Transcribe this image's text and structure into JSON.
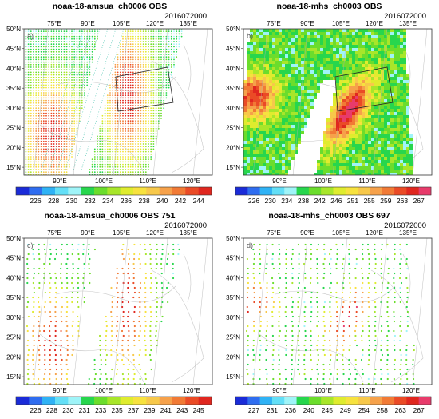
{
  "panels": [
    {
      "id": "a",
      "title": "noaa-18-amsua_ch0006 OBS",
      "date": "2016072000",
      "label": "a)",
      "scheme": "amsua",
      "style": "swaths",
      "box": true,
      "top_lon": [
        "75°E",
        "90°E",
        "105°E",
        "120°E",
        "135°E"
      ],
      "bottom_lon": [
        "90°E",
        "100°E",
        "110°E",
        "120°E"
      ],
      "lat": [
        "50°N",
        "45°N",
        "40°N",
        "35°N",
        "30°N",
        "25°N",
        "20°N",
        "15°N"
      ],
      "colorbar": [
        "226",
        "228",
        "230",
        "232",
        "234",
        "236",
        "238",
        "240",
        "242",
        "244"
      ]
    },
    {
      "id": "b",
      "title": "noaa-18-mhs_ch0003 OBS",
      "date": "2016072000",
      "label": "b)",
      "scheme": "mhs",
      "style": "filled",
      "box": true,
      "top_lon": [
        "75°E",
        "90°E",
        "105°E",
        "120°E",
        "135°E"
      ],
      "bottom_lon": [
        "90°E",
        "100°E",
        "110°E",
        "120°E"
      ],
      "lat": [
        "50°N",
        "45°N",
        "40°N",
        "35°N",
        "30°N",
        "25°N",
        "20°N",
        "15°N"
      ],
      "colorbar": [
        "226",
        "230",
        "234",
        "238",
        "242",
        "246",
        "251",
        "255",
        "259",
        "263",
        "267"
      ]
    },
    {
      "id": "c",
      "title": "noaa-18-amsua_ch0006  OBS  751",
      "date": "2016072000",
      "label": "c)",
      "scheme": "amsua",
      "style": "sparse",
      "box": false,
      "top_lon": [
        "75°E",
        "90°E",
        "105°E",
        "120°E",
        "135°E"
      ],
      "bottom_lon": [
        "90°E",
        "100°E",
        "110°E",
        "120°E"
      ],
      "lat": [
        "50°N",
        "45°N",
        "40°N",
        "35°N",
        "30°N",
        "25°N",
        "20°N",
        "15°N"
      ],
      "colorbar": [
        "226",
        "228",
        "230",
        "231",
        "233",
        "235",
        "237",
        "239",
        "241",
        "243",
        "245"
      ]
    },
    {
      "id": "d",
      "title": "noaa-18-mhs_ch0003  OBS  697",
      "date": "2016072000",
      "label": "d)",
      "scheme": "mhs",
      "style": "sparse",
      "box": false,
      "top_lon": [
        "75°E",
        "90°E",
        "105°E",
        "120°E",
        "135°E"
      ],
      "bottom_lon": [
        "90°E",
        "100°E",
        "110°E",
        "120°E"
      ],
      "lat": [
        "50°N",
        "45°N",
        "40°N",
        "35°N",
        "30°N",
        "25°N",
        "20°N",
        "15°N"
      ],
      "colorbar": [
        "227",
        "231",
        "236",
        "240",
        "245",
        "249",
        "254",
        "258",
        "263",
        "267"
      ]
    }
  ],
  "palettes": {
    "amsua": [
      "#1a2bd8",
      "#2f6df0",
      "#2fb2f5",
      "#63dff7",
      "#9ff4f8",
      "#27d64d",
      "#6bdd2c",
      "#a8e62a",
      "#dfec2e",
      "#f7e23e",
      "#f7c84a",
      "#f6a14a",
      "#f17a35",
      "#ea4b26",
      "#e0271f"
    ],
    "mhs": [
      "#1a2bd8",
      "#2f6df0",
      "#2fb2f5",
      "#63dff7",
      "#9ff4f8",
      "#27d64d",
      "#6bdd2c",
      "#a8e62a",
      "#dfec2e",
      "#f7e23e",
      "#f7c84a",
      "#f6a14a",
      "#f17a35",
      "#ea4b26",
      "#e0271f",
      "#e83b6b"
    ]
  }
}
